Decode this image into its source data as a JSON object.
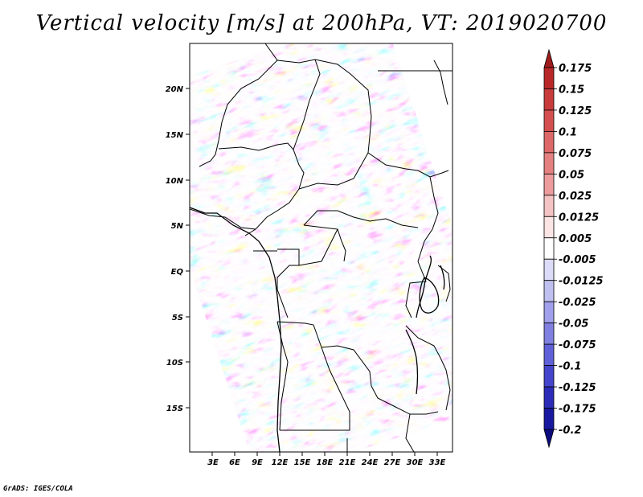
{
  "title": "Vertical velocity [m/s] at 200hPa, VT: 2019020700",
  "credit": "GrADS: IGES/COLA",
  "map": {
    "lat_labels": [
      "20N",
      "15N",
      "10N",
      "5N",
      "EQ",
      "5S",
      "10S",
      "15S"
    ],
    "lon_labels": [
      "3E",
      "6E",
      "9E",
      "12E",
      "15E",
      "18E",
      "21E",
      "24E",
      "27E",
      "30E",
      "33E"
    ],
    "field": "vertical velocity",
    "level": "200hPa",
    "valid_time": "2019020700"
  },
  "colorbar": {
    "labels": [
      "0.175",
      "0.15",
      "0.125",
      "0.1",
      "0.075",
      "0.05",
      "0.025",
      "0.0125",
      "0.005",
      "-0.005",
      "-0.0125",
      "-0.025",
      "-0.05",
      "-0.075",
      "-0.1",
      "-0.125",
      "-0.175",
      "-0.2"
    ],
    "colors": [
      "#a01c1c",
      "#b82828",
      "#c83c3c",
      "#d45050",
      "#dc6868",
      "#e48080",
      "#ec9c9c",
      "#f4c4c4",
      "#fbe4e4",
      "#ffffff",
      "#dcdcf8",
      "#c0c0f0",
      "#a0a0ec",
      "#8080e0",
      "#6060d8",
      "#4444cc",
      "#2c2cb8",
      "#1818a0",
      "#0c0c80"
    ]
  }
}
